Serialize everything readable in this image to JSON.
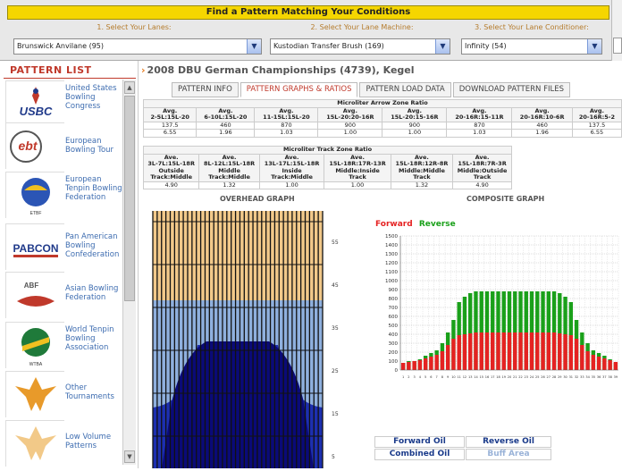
{
  "finder": {
    "title": "Find a Pattern Matching Your Conditions",
    "step1": "1. Select Your Lanes:",
    "step2": "2. Select Your Lane Machine:",
    "step3": "3. Select Your Lane Conditioner:",
    "lanes": "Brunswick Anvilane (95)",
    "machine": "Kustodian Transfer Brush (169)",
    "conditioner": "Infinity (54)"
  },
  "sidebar": {
    "title": "PATTERN LIST",
    "items": [
      {
        "label": "United States Bowling Congress",
        "logo": "USBC"
      },
      {
        "label": "European Bowling Tour",
        "logo": "ebt"
      },
      {
        "label": "European Tenpin Bowling Federation",
        "logo": "ETBF"
      },
      {
        "label": "Pan American Bowling Confederation",
        "logo": "PABCON"
      },
      {
        "label": "Asian Bowling Federation",
        "logo": "ABF"
      },
      {
        "label": "World Tenpin Bowling Association",
        "logo": "WTBA"
      },
      {
        "label": "Other Tournaments",
        "logo": ""
      },
      {
        "label": "Low Volume Patterns",
        "logo": ""
      }
    ]
  },
  "pattern": {
    "title": "2008 DBU German Championships (4739), Kegel"
  },
  "tabs": [
    {
      "label": "PATTERN INFO"
    },
    {
      "label": "PATTERN GRAPHS & RATIOS"
    },
    {
      "label": "PATTERN LOAD DATA"
    },
    {
      "label": "DOWNLOAD PATTERN FILES"
    }
  ],
  "arrow_table": {
    "title": "Microliter Arrow Zone Ratio",
    "cols": [
      "Avg.\n2-5L:15L-20",
      "Avg.\n6-10L:15L-20",
      "Avg.\n11-15L:15L-20",
      "Avg.\n15L-20:20-16R",
      "Avg.\n15L-20:15-16R",
      "Avg.\n20-16R:15-11R",
      "Avg.\n20-16R:10-6R",
      "Avg.\n20-16R:5-2"
    ],
    "row1": [
      "137.5",
      "460",
      "870",
      "900",
      "900",
      "870",
      "460",
      "137.5"
    ],
    "row2": [
      "6.55",
      "1.96",
      "1.03",
      "1.00",
      "1.00",
      "1.03",
      "1.96",
      "6.55"
    ]
  },
  "track_table": {
    "title": "Microliter Track Zone Ratio",
    "cols": [
      "Ave.\n3L-7L:15L-18R\nOutside\nTrack:Middle",
      "Ave.\n8L-12L:15L-18R\nMiddle\nTrack:Middle",
      "Ave.\n13L-17L:15L-18R\nInside\nTrack:Middle",
      "Ave.\n15L-18R:17R-13R\nMiddle:Inside\nTrack",
      "Ave.\n15L-18R:12R-8R\nMiddle:Middle\nTrack",
      "Ave.\n15L-18R:7R-3R\nMiddle:Outside\nTrack"
    ],
    "row1": [
      "4.90",
      "1.32",
      "1.00",
      "1.00",
      "1.32",
      "4.90"
    ]
  },
  "overhead": {
    "title": "OVERHEAD GRAPH",
    "ticks": [
      "55",
      "45",
      "35",
      "25",
      "15",
      "5"
    ],
    "colors": {
      "wood": "#f2c98a",
      "light": "#8fb0de",
      "mid": "#1d2fb0",
      "dark": "#0a0a78"
    }
  },
  "composite": {
    "title": "COMPOSITE GRAPH",
    "forward_label": "Forward",
    "reverse_label": "Reverse",
    "colors": {
      "forward": "#e52222",
      "reverse": "#1aa01a"
    }
  },
  "chart_data": {
    "type": "bar",
    "title": "COMPOSITE GRAPH",
    "ylim": [
      0,
      1500
    ],
    "yticks": [
      0,
      100,
      200,
      300,
      400,
      500,
      600,
      700,
      800,
      900,
      1000,
      1100,
      1200,
      1300,
      1400,
      1500
    ],
    "categories": [
      "1",
      "2",
      "3",
      "4",
      "5",
      "6",
      "7",
      "8",
      "9",
      "10",
      "11",
      "12",
      "13",
      "14",
      "15",
      "16",
      "17",
      "18",
      "19",
      "20",
      "21",
      "22",
      "23",
      "24",
      "25",
      "26",
      "27",
      "28",
      "29",
      "30",
      "31",
      "32",
      "33",
      "34",
      "35",
      "36",
      "37",
      "38",
      "39"
    ],
    "series": [
      {
        "name": "Forward",
        "values": [
          80,
          90,
          100,
          110,
          130,
          150,
          170,
          210,
          280,
          350,
          390,
          400,
          410,
          420,
          420,
          420,
          420,
          420,
          420,
          420,
          420,
          420,
          420,
          420,
          420,
          420,
          420,
          420,
          410,
          400,
          390,
          350,
          280,
          210,
          170,
          150,
          130,
          110,
          90
        ]
      },
      {
        "name": "Reverse",
        "values": [
          80,
          100,
          100,
          120,
          160,
          190,
          220,
          300,
          420,
          560,
          760,
          820,
          860,
          880,
          880,
          880,
          880,
          880,
          880,
          880,
          880,
          880,
          880,
          880,
          880,
          880,
          880,
          880,
          860,
          820,
          760,
          560,
          420,
          300,
          220,
          190,
          160,
          120,
          80
        ]
      }
    ],
    "grid": true
  },
  "legend": {
    "forward_oil": "Forward Oil",
    "reverse_oil": "Reverse Oil",
    "combined_oil": "Combined Oil",
    "buff_area": "Buff Area"
  }
}
